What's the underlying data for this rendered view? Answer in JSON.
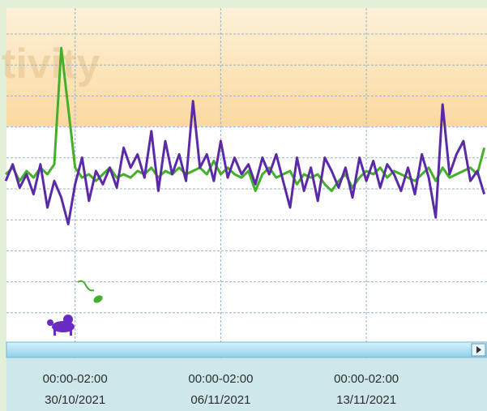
{
  "chart_data": {
    "type": "line",
    "watermark": "tivity",
    "x": [
      -10,
      -9,
      -8,
      -7,
      -6,
      -5,
      -4,
      -3,
      -2,
      -1,
      0,
      1,
      2,
      3,
      4,
      5,
      6,
      7,
      8,
      9,
      10,
      11,
      12,
      13,
      14,
      15,
      16,
      17,
      18,
      19,
      20,
      21,
      22,
      23,
      24,
      25,
      26,
      27,
      28,
      29,
      30,
      31,
      32,
      33,
      34,
      35,
      36,
      37,
      38,
      39,
      40,
      41,
      42,
      43,
      44,
      45,
      46,
      47,
      48,
      49,
      50,
      51,
      52,
      53,
      54,
      55,
      56,
      57,
      58,
      59
    ],
    "series": [
      {
        "color": "#43b02a",
        "values": [
          50,
          52,
          48,
          51,
          49,
          52,
          50,
          53,
          88,
          70,
          52,
          49,
          50,
          48,
          50,
          52,
          49,
          50,
          49,
          51,
          50,
          52,
          49,
          51,
          50,
          52,
          50,
          51,
          52,
          50,
          54,
          50,
          52,
          50,
          49,
          51,
          45,
          50,
          52,
          49,
          50,
          51,
          47,
          50,
          49,
          50,
          47,
          45,
          48,
          50,
          46,
          49,
          51,
          50,
          52,
          49,
          51,
          50,
          49,
          48,
          50,
          52,
          48,
          52,
          49,
          50,
          51,
          52,
          50,
          58
        ]
      },
      {
        "color": "#5b2aa6",
        "values": [
          48,
          53,
          46,
          50,
          44,
          53,
          40,
          48,
          43,
          35,
          47,
          55,
          42,
          51,
          47,
          52,
          46,
          58,
          52,
          56,
          49,
          63,
          45,
          60,
          50,
          56,
          48,
          72,
          52,
          56,
          48,
          60,
          49,
          55,
          50,
          53,
          47,
          55,
          50,
          56,
          48,
          40,
          55,
          45,
          52,
          42,
          55,
          51,
          46,
          52,
          43,
          55,
          48,
          54,
          46,
          53,
          50,
          45,
          52,
          44,
          56,
          49,
          37,
          71,
          50,
          56,
          60,
          48,
          51,
          44
        ]
      }
    ],
    "xlim": [
      -9.9,
      59.4
    ],
    "ylim": [
      0,
      100
    ],
    "xticks": [
      {
        "value": 0,
        "label": [
          "00:00-02:00",
          "30/10/2021"
        ]
      },
      {
        "value": 21,
        "label": [
          "00:00-02:00",
          "06/11/2021"
        ]
      },
      {
        "value": 42,
        "label": [
          "00:00-02:00",
          "13/11/2021"
        ]
      }
    ],
    "grid": true
  }
}
